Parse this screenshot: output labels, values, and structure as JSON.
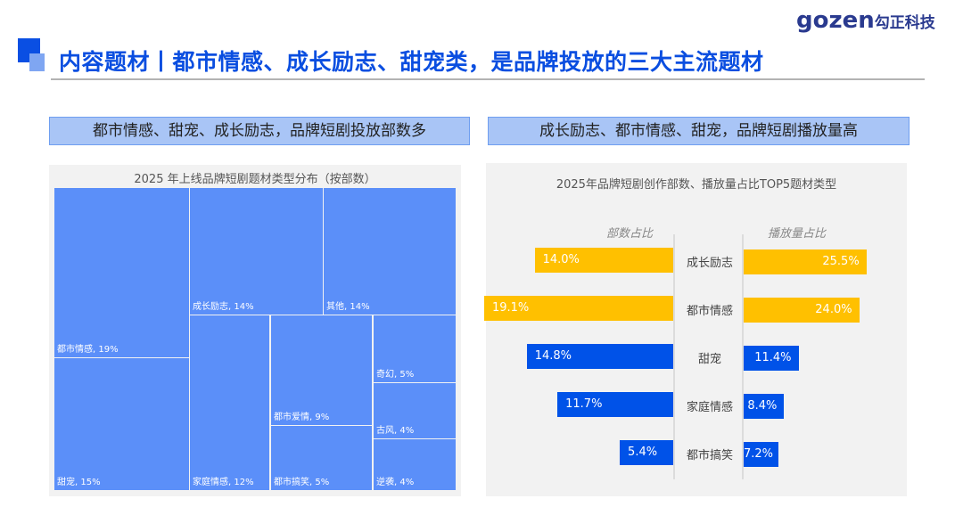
{
  "header": {
    "title": "内容题材丨都市情感、成长励志、甜宠类，是品牌投放的三大主流题材",
    "logo_text": "gozen",
    "logo_cn": "勾正科技"
  },
  "left_subtitle": "都市情感、甜宠、成长励志，品牌短剧投放部数多",
  "right_subtitle": "成长励志、都市情感、甜宠，品牌短剧播放量高",
  "chart_data": [
    {
      "type": "treemap",
      "title": "2025 年上线品牌短剧题材类型分布（按部数）",
      "items": [
        {
          "name": "都市情感",
          "value": 19,
          "label": "都市情感, 19%"
        },
        {
          "name": "甜宠",
          "value": 15,
          "label": "甜宠, 15%"
        },
        {
          "name": "成长励志",
          "value": 14,
          "label": "成长励志, 14%"
        },
        {
          "name": "其他",
          "value": 14,
          "label": "其他, 14%"
        },
        {
          "name": "家庭情感",
          "value": 12,
          "label": "家庭情感, 12%"
        },
        {
          "name": "都市爱情",
          "value": 9,
          "label": "都市爱情, 9%"
        },
        {
          "name": "都市搞笑",
          "value": 5,
          "label": "都市搞笑, 5%"
        },
        {
          "name": "奇幻",
          "value": 5,
          "label": "奇幻, 5%"
        },
        {
          "name": "古风",
          "value": 4,
          "label": "古风, 4%"
        },
        {
          "name": "逆袭",
          "value": 4,
          "label": "逆袭, 4%"
        }
      ],
      "color": "#5b8ff9"
    },
    {
      "type": "bar",
      "orientation": "butterfly",
      "title": "2025年品牌短剧创作部数、播放量占比TOP5题材类型",
      "left_header": "部数占比",
      "right_header": "播放量占比",
      "categories": [
        "成长励志",
        "都市情感",
        "甜宠",
        "家庭情感",
        "都市搞笑"
      ],
      "series": [
        {
          "name": "部数占比",
          "values": [
            14.0,
            19.1,
            14.8,
            11.7,
            5.4
          ],
          "labels": [
            "14.0%",
            "19.1%",
            "14.8%",
            "11.7%",
            "5.4%"
          ]
        },
        {
          "name": "播放量占比",
          "values": [
            25.5,
            24.0,
            11.4,
            8.4,
            7.2
          ],
          "labels": [
            "25.5%",
            "24.0%",
            "11.4%",
            "8.4%",
            "7.2%"
          ]
        }
      ],
      "highlight_color": "#ffc000",
      "color": "#0052e8",
      "highlight_count": 2
    }
  ]
}
